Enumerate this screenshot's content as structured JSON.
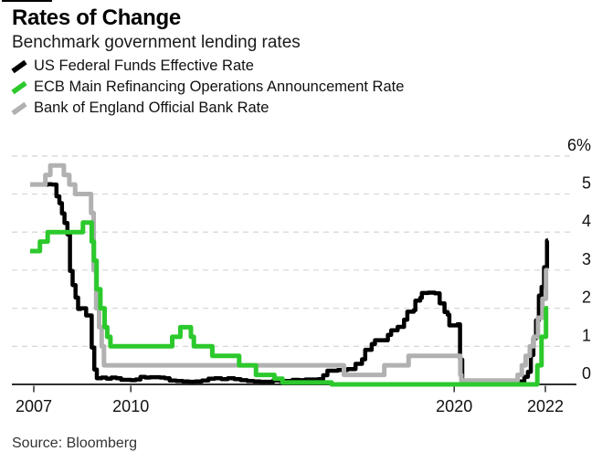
{
  "chart_data": {
    "type": "line",
    "title": "Rates of Change",
    "subtitle": "Benchmark government lending rates",
    "source": "Source: Bloomberg",
    "legend_position": "top-left",
    "grid": "dashed-horizontal",
    "y_axis_side": "right",
    "ylim": [
      0,
      6.3
    ],
    "y_ticks": [
      {
        "value": 6,
        "label": "6%"
      },
      {
        "value": 5,
        "label": "5"
      },
      {
        "value": 4,
        "label": "4"
      },
      {
        "value": 3,
        "label": "3"
      },
      {
        "value": 2,
        "label": "2"
      },
      {
        "value": 1,
        "label": "1"
      },
      {
        "value": 0,
        "label": "0"
      }
    ],
    "x_ticks": [
      {
        "label": "2007",
        "t": 2007.0
      },
      {
        "label": "2010",
        "t": 2010.0
      },
      {
        "label": "2020",
        "t": 2020.0
      },
      {
        "label": "2022",
        "t": 2022.82
      }
    ],
    "x_end": 2022.9,
    "interpolation": "step-after",
    "series": [
      {
        "name": "US Federal Funds Effective Rate",
        "color": "#000000",
        "points": [
          [
            2007.0,
            5.25
          ],
          [
            2007.45,
            5.26
          ],
          [
            2007.55,
            5.25
          ],
          [
            2007.7,
            4.94
          ],
          [
            2007.79,
            4.76
          ],
          [
            2007.87,
            4.49
          ],
          [
            2007.95,
            4.24
          ],
          [
            2008.04,
            3.94
          ],
          [
            2008.12,
            2.98
          ],
          [
            2008.2,
            2.61
          ],
          [
            2008.29,
            2.28
          ],
          [
            2008.37,
            1.98
          ],
          [
            2008.45,
            2.0
          ],
          [
            2008.62,
            1.81
          ],
          [
            2008.79,
            0.97
          ],
          [
            2008.87,
            0.39
          ],
          [
            2008.95,
            0.16
          ],
          [
            2009.1,
            0.18
          ],
          [
            2009.25,
            0.15
          ],
          [
            2009.4,
            0.18
          ],
          [
            2009.55,
            0.16
          ],
          [
            2009.7,
            0.12
          ],
          [
            2009.85,
            0.12
          ],
          [
            2010.0,
            0.11
          ],
          [
            2010.15,
            0.13
          ],
          [
            2010.3,
            0.2
          ],
          [
            2010.45,
            0.18
          ],
          [
            2010.6,
            0.19
          ],
          [
            2010.75,
            0.19
          ],
          [
            2010.9,
            0.18
          ],
          [
            2011.05,
            0.16
          ],
          [
            2011.2,
            0.1
          ],
          [
            2011.4,
            0.09
          ],
          [
            2011.6,
            0.08
          ],
          [
            2011.8,
            0.07
          ],
          [
            2012.0,
            0.08
          ],
          [
            2012.2,
            0.1
          ],
          [
            2012.4,
            0.15
          ],
          [
            2012.6,
            0.16
          ],
          [
            2012.8,
            0.14
          ],
          [
            2013.0,
            0.16
          ],
          [
            2013.2,
            0.14
          ],
          [
            2013.4,
            0.11
          ],
          [
            2013.6,
            0.09
          ],
          [
            2013.8,
            0.08
          ],
          [
            2014.0,
            0.07
          ],
          [
            2014.2,
            0.07
          ],
          [
            2014.4,
            0.1
          ],
          [
            2014.6,
            0.09
          ],
          [
            2014.8,
            0.09
          ],
          [
            2015.0,
            0.12
          ],
          [
            2015.2,
            0.11
          ],
          [
            2015.4,
            0.13
          ],
          [
            2015.6,
            0.13
          ],
          [
            2015.8,
            0.14
          ],
          [
            2015.95,
            0.24
          ],
          [
            2016.08,
            0.36
          ],
          [
            2016.4,
            0.38
          ],
          [
            2016.7,
            0.4
          ],
          [
            2016.95,
            0.54
          ],
          [
            2017.15,
            0.66
          ],
          [
            2017.25,
            0.91
          ],
          [
            2017.45,
            1.06
          ],
          [
            2017.55,
            1.16
          ],
          [
            2017.95,
            1.3
          ],
          [
            2018.05,
            1.42
          ],
          [
            2018.25,
            1.51
          ],
          [
            2018.45,
            1.7
          ],
          [
            2018.55,
            1.91
          ],
          [
            2018.75,
            1.95
          ],
          [
            2018.8,
            2.2
          ],
          [
            2018.95,
            2.27
          ],
          [
            2019.0,
            2.4
          ],
          [
            2019.2,
            2.41
          ],
          [
            2019.4,
            2.39
          ],
          [
            2019.55,
            2.13
          ],
          [
            2019.7,
            1.9
          ],
          [
            2019.8,
            1.83
          ],
          [
            2019.85,
            1.55
          ],
          [
            2020.1,
            1.58
          ],
          [
            2020.18,
            0.65
          ],
          [
            2020.25,
            0.05
          ],
          [
            2020.45,
            0.08
          ],
          [
            2020.7,
            0.09
          ],
          [
            2021.0,
            0.08
          ],
          [
            2021.3,
            0.07
          ],
          [
            2021.6,
            0.08
          ],
          [
            2021.9,
            0.08
          ],
          [
            2022.17,
            0.2
          ],
          [
            2022.28,
            0.33
          ],
          [
            2022.37,
            0.77
          ],
          [
            2022.45,
            1.21
          ],
          [
            2022.53,
            1.68
          ],
          [
            2022.62,
            2.33
          ],
          [
            2022.7,
            2.56
          ],
          [
            2022.78,
            3.08
          ],
          [
            2022.87,
            3.78
          ]
        ]
      },
      {
        "name": "ECB Main Refinancing Operations Announcement Rate",
        "color": "#2cc92c",
        "points": [
          [
            2007.0,
            3.5
          ],
          [
            2007.19,
            3.75
          ],
          [
            2007.43,
            4.0
          ],
          [
            2008.52,
            4.25
          ],
          [
            2008.79,
            3.75
          ],
          [
            2008.86,
            3.25
          ],
          [
            2008.94,
            2.5
          ],
          [
            2009.06,
            2.0
          ],
          [
            2009.19,
            1.5
          ],
          [
            2009.27,
            1.25
          ],
          [
            2009.37,
            1.0
          ],
          [
            2011.28,
            1.25
          ],
          [
            2011.53,
            1.5
          ],
          [
            2011.86,
            1.25
          ],
          [
            2011.95,
            1.0
          ],
          [
            2012.52,
            0.75
          ],
          [
            2013.35,
            0.5
          ],
          [
            2013.87,
            0.25
          ],
          [
            2014.44,
            0.15
          ],
          [
            2014.69,
            0.05
          ],
          [
            2016.21,
            0.0
          ],
          [
            2022.57,
            0.5
          ],
          [
            2022.7,
            1.25
          ],
          [
            2022.84,
            2.0
          ]
        ]
      },
      {
        "name": "Bank of England Official Bank Rate",
        "color": "#b1b1b1",
        "points": [
          [
            2007.0,
            5.25
          ],
          [
            2007.36,
            5.5
          ],
          [
            2007.51,
            5.75
          ],
          [
            2007.93,
            5.5
          ],
          [
            2008.1,
            5.25
          ],
          [
            2008.28,
            5.0
          ],
          [
            2008.77,
            4.5
          ],
          [
            2008.85,
            3.0
          ],
          [
            2008.93,
            2.0
          ],
          [
            2009.02,
            1.5
          ],
          [
            2009.1,
            1.0
          ],
          [
            2009.17,
            0.5
          ],
          [
            2016.59,
            0.25
          ],
          [
            2017.84,
            0.5
          ],
          [
            2018.59,
            0.75
          ],
          [
            2020.19,
            0.25
          ],
          [
            2020.22,
            0.1
          ],
          [
            2021.96,
            0.25
          ],
          [
            2022.09,
            0.5
          ],
          [
            2022.21,
            0.75
          ],
          [
            2022.34,
            1.0
          ],
          [
            2022.46,
            1.25
          ],
          [
            2022.59,
            1.75
          ],
          [
            2022.73,
            2.25
          ],
          [
            2022.84,
            3.0
          ]
        ]
      }
    ]
  }
}
